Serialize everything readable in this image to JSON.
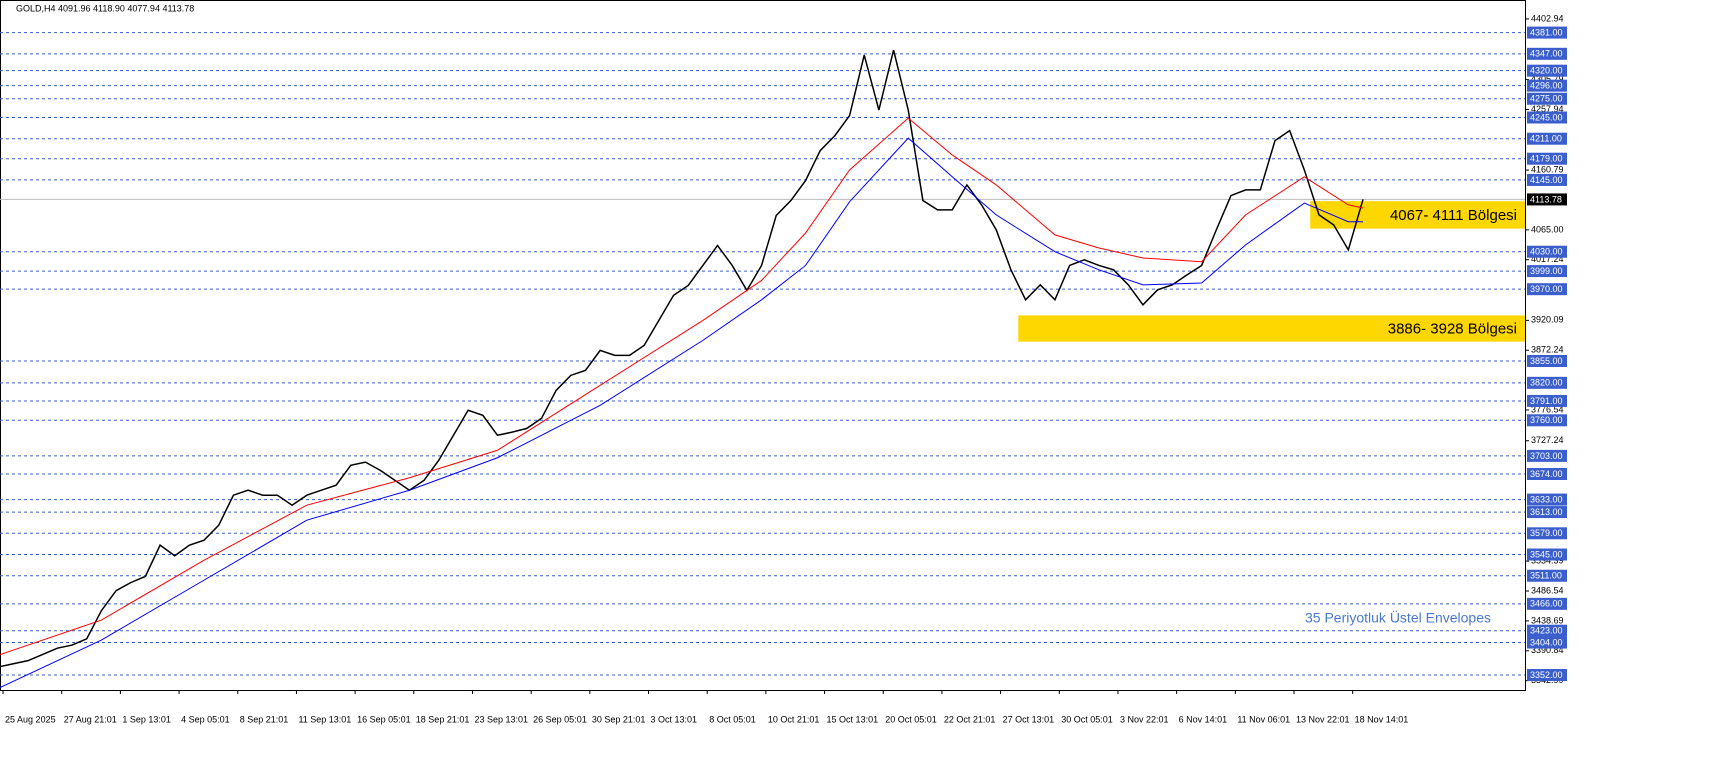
{
  "chart_data": {
    "type": "line",
    "header": "GOLD,H4  4091.96 4118.90 4077.94 4113.78",
    "categories": [
      null,
      null,
      "25 Aug 2025",
      null,
      null,
      null,
      "27 Aug 21:01",
      null,
      null,
      null,
      "1 Sep 13:01",
      null,
      null,
      null,
      "4 Sep 05:01",
      null,
      null,
      null,
      "8 Sep 21:01",
      null,
      null,
      null,
      "11 Sep 13:01",
      null,
      null,
      null,
      "16 Sep 05:01",
      null,
      null,
      null,
      "18 Sep 21:01",
      null,
      null,
      null,
      "23 Sep 13:01",
      null,
      null,
      null,
      "26 Sep 05:01",
      null,
      null,
      null,
      "30 Sep 21:01",
      null,
      null,
      null,
      "3 Oct 13:01",
      null,
      null,
      null,
      "8 Oct 05:01",
      null,
      null,
      null,
      "10 Oct 21:01",
      null,
      null,
      null,
      "15 Oct 13:01",
      null,
      null,
      null,
      "20 Oct 05:01",
      null,
      null,
      null,
      "22 Oct 21:01",
      null,
      null,
      null,
      "27 Oct 13:01",
      null,
      null,
      null,
      "30 Oct 05:01",
      null,
      null,
      null,
      "3 Nov 22:01",
      null,
      null,
      null,
      "6 Nov 14:01",
      null,
      null,
      null,
      "11 Nov 06:01",
      null,
      null,
      null,
      "13 Nov 22:01",
      null,
      null,
      null,
      "18 Nov 14:01"
    ],
    "series": [
      {
        "color": "#000000",
        "values": [
          3365,
          3370,
          3375,
          3385,
          3395,
          3400,
          3410,
          3455,
          3487,
          3500,
          3510,
          3560,
          3543,
          3560,
          3568,
          3592,
          3640,
          3648,
          3640,
          3640,
          3624,
          3640,
          3648,
          3656,
          3688,
          3693,
          3680,
          3664,
          3648,
          3664,
          3696,
          3736,
          3776,
          3768,
          3736,
          3741,
          3747,
          3763,
          3808,
          3832,
          3840,
          3872,
          3864,
          3864,
          3880,
          3920,
          3960,
          3976,
          4008,
          4040,
          4008,
          3968,
          4008,
          4088,
          4112,
          4144,
          4192,
          4216,
          4248,
          4345,
          4257,
          4353,
          4257,
          4112,
          4097,
          4097,
          4137,
          4105,
          4065,
          4001,
          3953,
          3977,
          3953,
          4008,
          4017,
          4008,
          4001,
          3977,
          3945,
          3969,
          3977,
          3993,
          4008,
          4065,
          4120,
          4129,
          4129,
          4208,
          4224,
          4161,
          4089,
          4073,
          4033,
          4113.78,
          null
        ]
      },
      {
        "color": "#ff0000",
        "x": [
          0,
          7,
          14,
          21,
          28,
          34,
          41,
          48,
          52,
          55,
          58,
          62,
          65,
          68,
          72,
          75,
          78,
          82,
          85,
          89,
          92,
          93
        ],
        "values": [
          3384,
          3440,
          3536,
          3624,
          3668,
          3712,
          3816,
          3920,
          3984,
          4060,
          4161,
          4244,
          4185,
          4137,
          4057,
          4036,
          4020,
          4014,
          4089,
          4150,
          4105,
          4100
        ]
      },
      {
        "color": "#0000ff",
        "x": [
          0,
          7,
          14,
          21,
          28,
          34,
          41,
          48,
          52,
          55,
          58,
          62,
          65,
          68,
          72,
          75,
          78,
          82,
          85,
          89,
          92,
          93
        ],
        "values": [
          3331,
          3408,
          3504,
          3600,
          3648,
          3700,
          3784,
          3888,
          3953,
          4008,
          4110,
          4212,
          4150,
          4089,
          4030,
          4001,
          3977,
          3980,
          4041,
          4108,
          4078,
          4078
        ]
      }
    ],
    "ylim": [
      3328,
      4430
    ],
    "yticks": [
      4402.94,
      4305.79,
      4257.94,
      4160.79,
      {
        "value": 4065,
        "label": "4065.00"
      },
      4017.24,
      3920.09,
      3872.24,
      3776.54,
      3727.24,
      3534.39,
      3486.54,
      3438.69,
      3390.84,
      3342.99
    ],
    "levels": [
      {
        "value": 4381,
        "label": "4381.00"
      },
      {
        "value": 4347,
        "label": "4347.00"
      },
      {
        "value": 4320,
        "label": "4320.00"
      },
      {
        "value": 4296,
        "label": "4296.00"
      },
      {
        "value": 4275,
        "label": "4275.00"
      },
      {
        "value": 4245,
        "label": "4245.00"
      },
      {
        "value": 4211,
        "label": "4211.00"
      },
      {
        "value": 4179,
        "label": "4179.00"
      },
      {
        "value": 4145,
        "label": "4145.00"
      },
      {
        "value": 4030,
        "label": "4030.00"
      },
      {
        "value": 3999,
        "label": "3999.00"
      },
      {
        "value": 3970,
        "label": "3970.00"
      },
      {
        "value": 3855,
        "label": "3855.00"
      },
      {
        "value": 3820,
        "label": "3820.00"
      },
      {
        "value": 3791,
        "label": "3791.00"
      },
      {
        "value": 3760,
        "label": "3760.00"
      },
      {
        "value": 3703,
        "label": "3703.00"
      },
      {
        "value": 3674,
        "label": "3674.00"
      },
      {
        "value": 3633,
        "label": "3633.00"
      },
      {
        "value": 3613,
        "label": "3613.00"
      },
      {
        "value": 3579,
        "label": "3579.00"
      },
      {
        "value": 3545,
        "label": "3545.00"
      },
      {
        "value": 3511,
        "label": "3511.00"
      },
      {
        "value": 3466,
        "label": "3466.00"
      },
      {
        "value": 3423,
        "label": "3423.00"
      },
      {
        "value": 3404,
        "label": "3404.00"
      },
      {
        "value": 3352,
        "label": "3352.00"
      }
    ],
    "level_color": "#3a5fcd",
    "last_price": 4113.78,
    "zones": [
      {
        "low": 4067,
        "high": 4111,
        "x_start": 89.4,
        "label": "4067- 4111 Bölgesi"
      },
      {
        "low": 3886,
        "high": 3928,
        "x_start": 69.5,
        "label": "3886- 3928 Bölgesi"
      }
    ],
    "zone_color": "#ffd700",
    "annotation": "35 Periyotluk Üstel Envelopes",
    "annotation_color": "#4a78d0"
  }
}
